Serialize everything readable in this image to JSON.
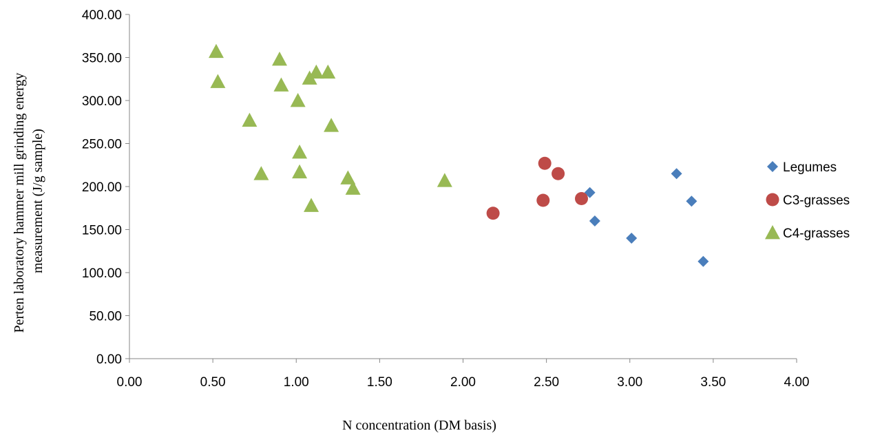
{
  "chart_data": {
    "type": "scatter",
    "title": "",
    "xlabel": "N concentration (DM basis)",
    "ylabel_lines": [
      "Perten laboratory hammer mill grinding energy",
      "measurement (J/g sample)"
    ],
    "xlim": [
      0,
      4
    ],
    "ylim": [
      0,
      400
    ],
    "x_ticks": [
      "0.00",
      "0.50",
      "1.00",
      "1.50",
      "2.00",
      "2.50",
      "3.00",
      "3.50",
      "4.00"
    ],
    "y_ticks": [
      "0.00",
      "50.00",
      "100.00",
      "150.00",
      "200.00",
      "250.00",
      "300.00",
      "350.00",
      "400.00"
    ],
    "grid": false,
    "legend_position": "right",
    "series": [
      {
        "name": "Legumes",
        "marker": "diamond",
        "color": "#4a7ebb",
        "points": [
          [
            2.76,
            193
          ],
          [
            2.79,
            160
          ],
          [
            3.01,
            140
          ],
          [
            3.28,
            215
          ],
          [
            3.37,
            183
          ],
          [
            3.44,
            113
          ]
        ]
      },
      {
        "name": "C3-grasses",
        "marker": "circle",
        "color": "#be4b48",
        "points": [
          [
            2.18,
            169
          ],
          [
            2.48,
            184
          ],
          [
            2.49,
            227
          ],
          [
            2.57,
            215
          ],
          [
            2.71,
            186
          ]
        ]
      },
      {
        "name": "C4-grasses",
        "marker": "triangle",
        "color": "#98b954",
        "points": [
          [
            0.52,
            357
          ],
          [
            0.53,
            322
          ],
          [
            0.72,
            277
          ],
          [
            0.79,
            215
          ],
          [
            0.9,
            348
          ],
          [
            0.91,
            318
          ],
          [
            1.01,
            300
          ],
          [
            1.02,
            240
          ],
          [
            1.02,
            217
          ],
          [
            1.08,
            326
          ],
          [
            1.09,
            178
          ],
          [
            1.12,
            333
          ],
          [
            1.19,
            333
          ],
          [
            1.21,
            271
          ],
          [
            1.31,
            210
          ],
          [
            1.34,
            198
          ],
          [
            1.89,
            207
          ]
        ]
      }
    ]
  }
}
